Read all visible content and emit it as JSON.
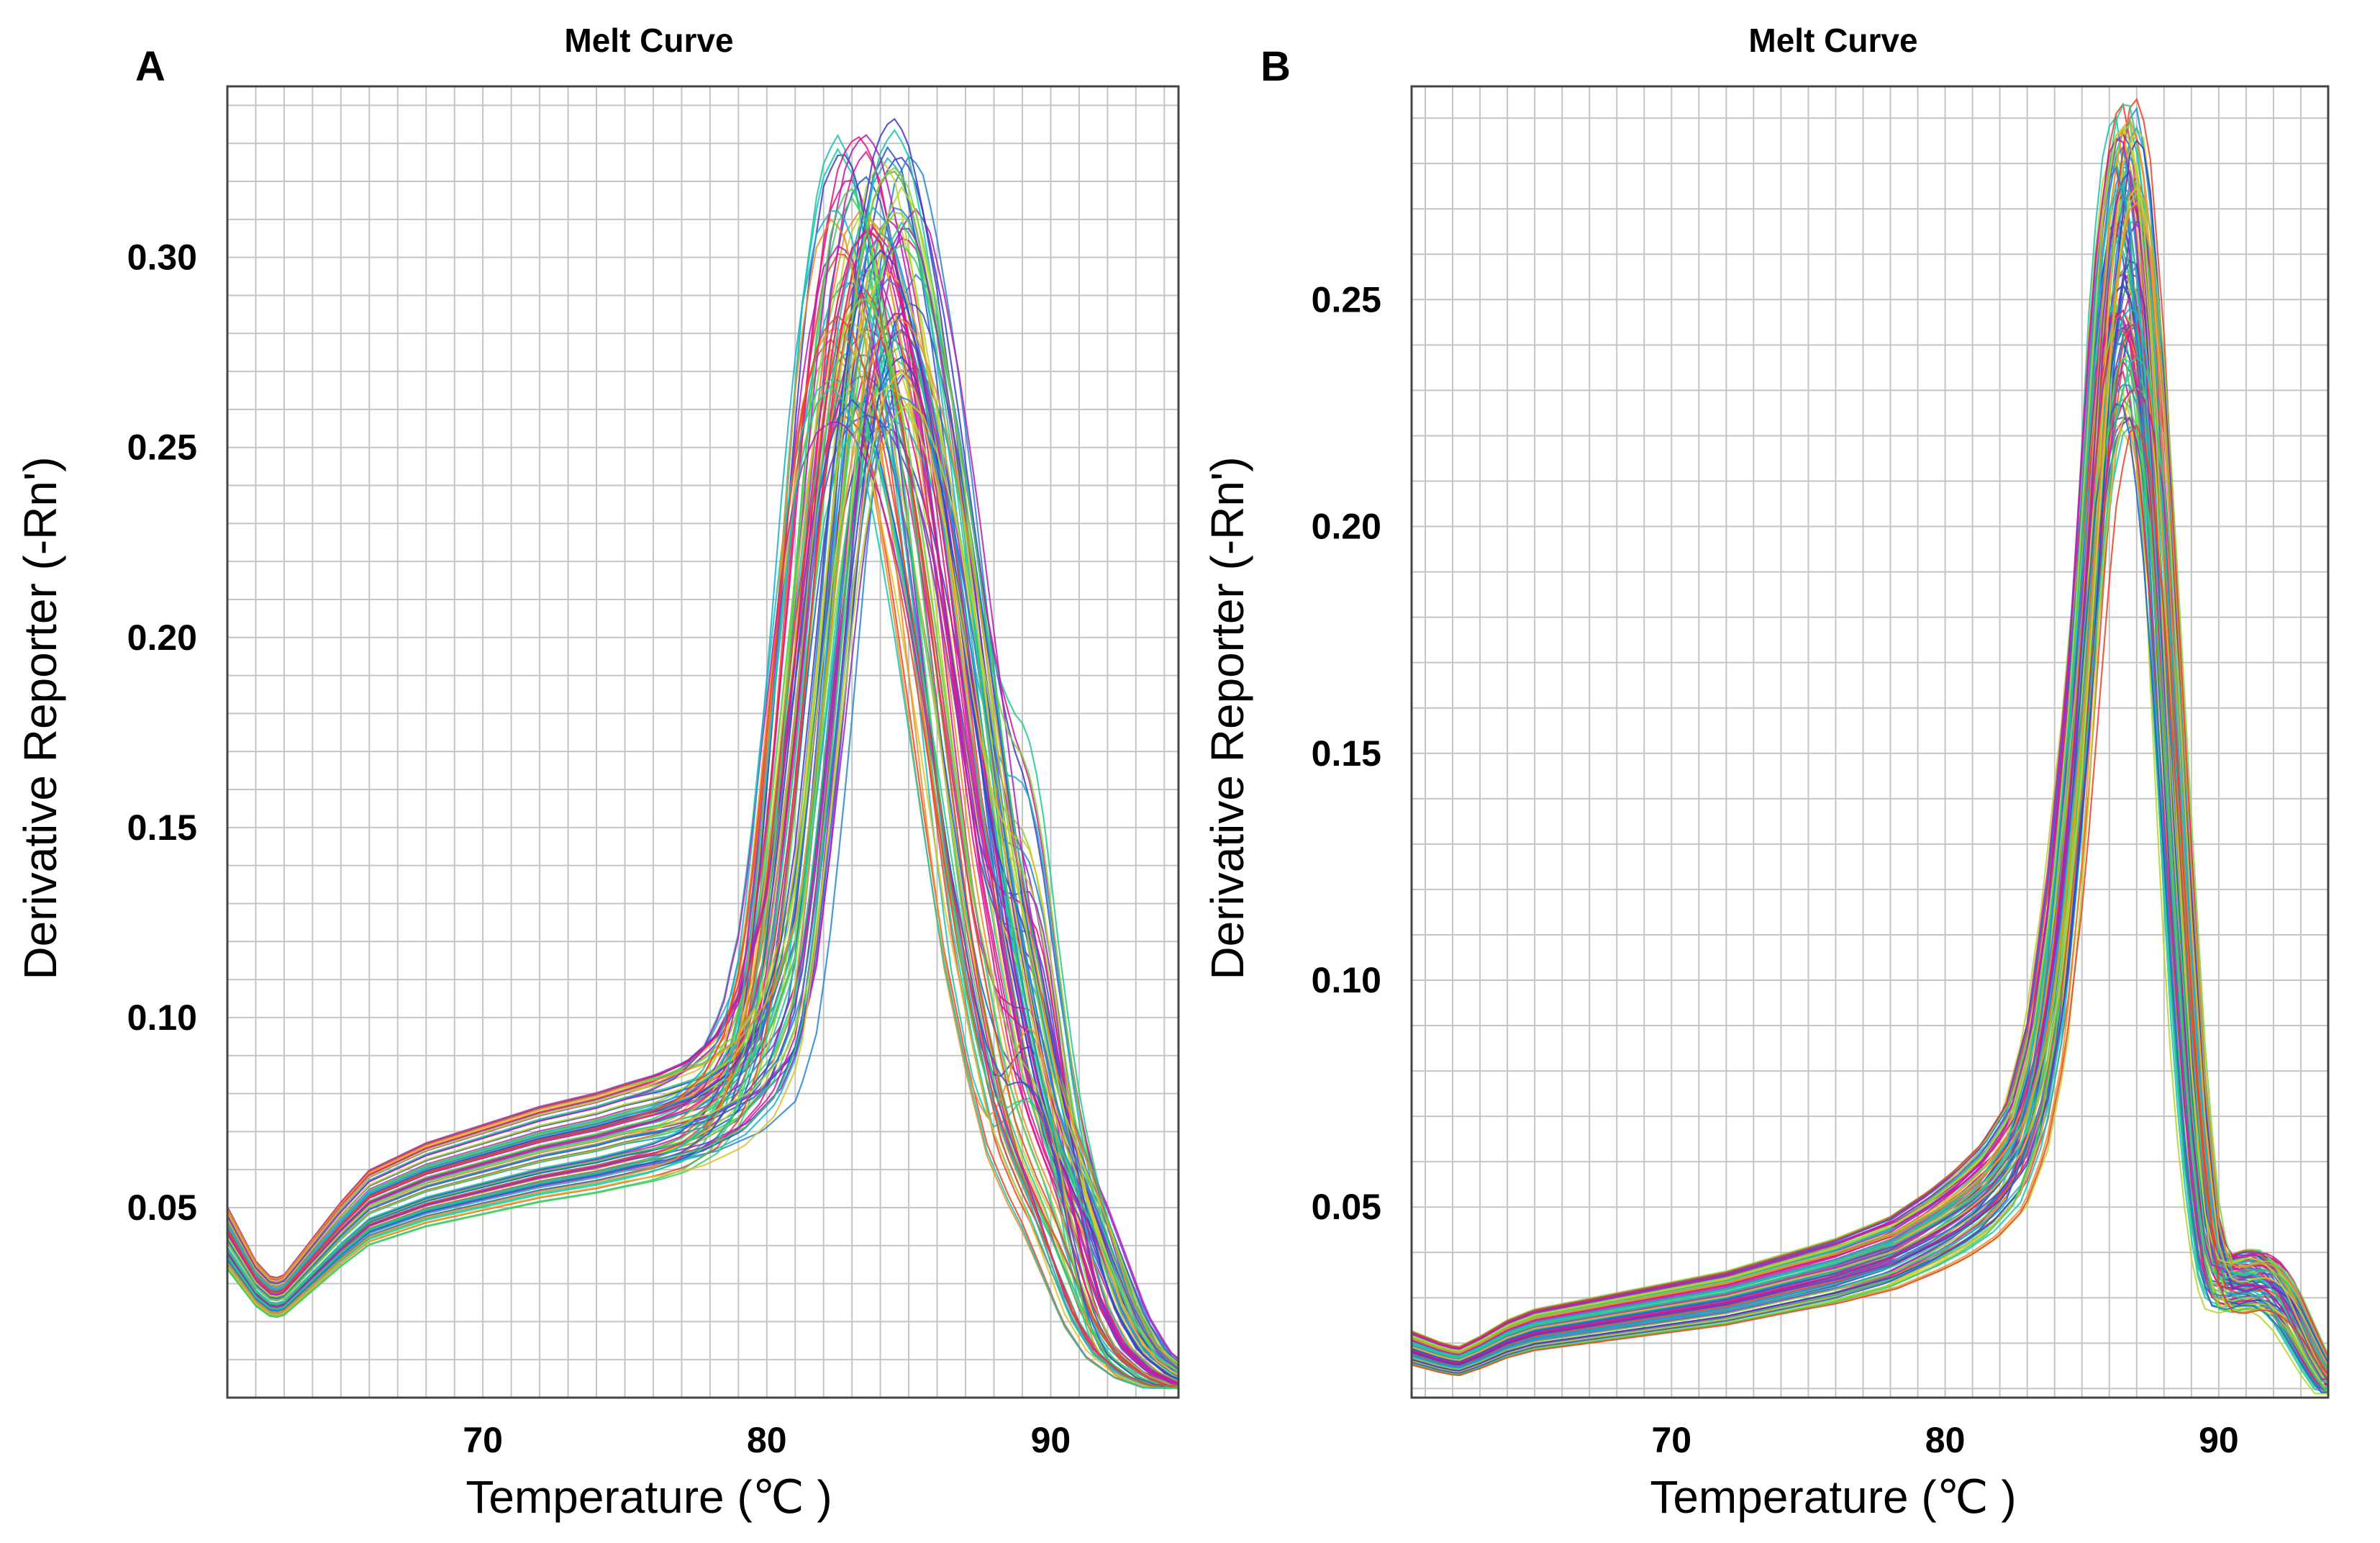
{
  "panel_letters": [
    "A",
    "B"
  ],
  "colors": {
    "grid": "#c4c4c4",
    "frame": "#444444",
    "series_palette": [
      "#e0187a",
      "#d21a9a",
      "#b71fb8",
      "#7f34c8",
      "#3e3ec6",
      "#2b5bc9",
      "#2a86cf",
      "#1fb0c9",
      "#1cc4b0",
      "#27c98a",
      "#3ccf60",
      "#7ed43e",
      "#b9d433",
      "#e0c22c",
      "#e8902a",
      "#e8452c"
    ]
  },
  "chart_data": [
    {
      "type": "line",
      "panel": "A",
      "title": "Melt Curve",
      "xlabel": "Temperature (℃ )",
      "ylabel": "Derivative Reporter (-Rn')",
      "xlim": [
        61,
        94.5
      ],
      "ylim": [
        0,
        0.345
      ],
      "xticks": [
        70,
        80,
        90
      ],
      "xtick_labels": [
        "70",
        "80",
        "90"
      ],
      "yticks": [
        0.05,
        0.1,
        0.15,
        0.2,
        0.25,
        0.3
      ],
      "ytick_labels": [
        "0.05",
        "0.10",
        "0.15",
        "0.20",
        "0.25",
        "0.30"
      ],
      "grid": true,
      "grid_x_step": 1,
      "grid_y_step": 0.01,
      "series_count": 96,
      "representative_curve": {
        "x": [
          61,
          62,
          62.6,
          63,
          64,
          65,
          66,
          68,
          70,
          72,
          74,
          76,
          77,
          78,
          78.8,
          79.5,
          80,
          80.6,
          81.2,
          81.8,
          82.4,
          83,
          83.5,
          84,
          84.6,
          85.2,
          85.8,
          86.4,
          87,
          87.8,
          88.5,
          89.2,
          89.8,
          90.5,
          91.2,
          92,
          93,
          94
        ],
        "y": [
          0.042,
          0.03,
          0.026,
          0.027,
          0.035,
          0.043,
          0.05,
          0.056,
          0.06,
          0.064,
          0.067,
          0.071,
          0.074,
          0.08,
          0.09,
          0.11,
          0.14,
          0.185,
          0.235,
          0.275,
          0.298,
          0.305,
          0.3,
          0.285,
          0.262,
          0.232,
          0.198,
          0.163,
          0.13,
          0.098,
          0.074,
          0.06,
          0.05,
          0.036,
          0.022,
          0.012,
          0.006,
          0.003
        ]
      },
      "variation": {
        "peak_temp_range": [
          82.2,
          85.3
        ],
        "peak_height_range": [
          0.255,
          0.338
        ],
        "plateau_range": [
          0.05,
          0.093
        ],
        "shoulder_near_90": true
      }
    },
    {
      "type": "line",
      "panel": "B",
      "title": "Melt Curve",
      "xlabel": "Temperature (℃ )",
      "ylabel": "Derivative Reporter (-Rn')",
      "xlim": [
        60.5,
        94
      ],
      "ylim": [
        0.008,
        0.297
      ],
      "xticks": [
        70,
        80,
        90
      ],
      "xtick_labels": [
        "70",
        "80",
        "90"
      ],
      "yticks": [
        0.05,
        0.1,
        0.15,
        0.2,
        0.25
      ],
      "ytick_labels": [
        "0.05",
        "0.10",
        "0.15",
        "0.20",
        "0.25"
      ],
      "grid": true,
      "grid_x_step": 1,
      "grid_y_step": 0.01,
      "series_count": 96,
      "representative_curve": {
        "x": [
          60.5,
          61.5,
          62.2,
          63,
          64,
          65,
          66,
          68,
          70,
          72,
          74,
          76,
          78,
          79.5,
          80.5,
          81.5,
          82.5,
          83.3,
          84,
          84.7,
          85.3,
          85.8,
          86.3,
          86.7,
          87.1,
          87.6,
          88.1,
          88.6,
          89.1,
          89.6,
          90,
          90.5,
          91,
          91.5,
          92,
          92.5,
          93,
          93.5,
          94
        ],
        "y": [
          0.019,
          0.017,
          0.016,
          0.018,
          0.021,
          0.023,
          0.024,
          0.026,
          0.028,
          0.03,
          0.033,
          0.036,
          0.04,
          0.045,
          0.049,
          0.054,
          0.062,
          0.078,
          0.105,
          0.15,
          0.205,
          0.25,
          0.272,
          0.275,
          0.262,
          0.225,
          0.17,
          0.115,
          0.07,
          0.042,
          0.034,
          0.033,
          0.034,
          0.034,
          0.032,
          0.028,
          0.022,
          0.016,
          0.011
        ]
      },
      "variation": {
        "peak_temp_range": [
          86.2,
          87.2
        ],
        "peak_height_range": [
          0.222,
          0.295
        ],
        "shoulder_near_91": true
      }
    }
  ]
}
